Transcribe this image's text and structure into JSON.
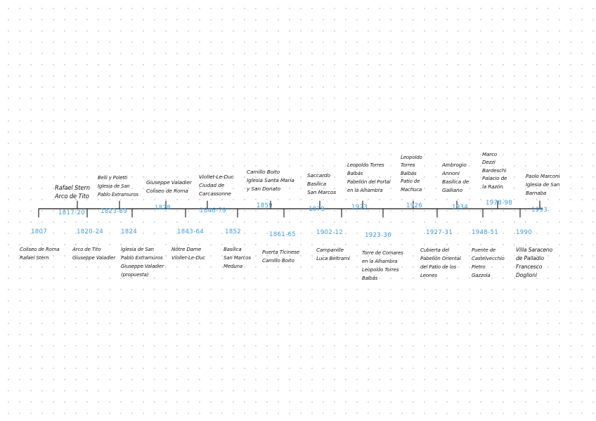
{
  "events_above": [
    {
      "years": "1817-20",
      "name": "Rafael Stern\nArco de Tito"
    },
    {
      "years": "1823-69",
      "name": "Belli y Poletti\nIglesia de San\nPablo Extramuros"
    },
    {
      "years": "1828",
      "name": "Giuseppe Valadier\nColiseo de Roma"
    },
    {
      "years": "1846-79",
      "name": "Viollet-Le-Duc\nCiudad de\nCarcassonne"
    },
    {
      "years": "1859",
      "name": "Camillo Boito\nIglesia Santa María\ny San Donato"
    },
    {
      "years": "1879",
      "name": "Saccardo\nBasílica\nSan Marcos"
    },
    {
      "years": "1923",
      "name": "Leopoldo Torres\nBalbás\nPabellón del Portal\nen la Alhambra"
    },
    {
      "years": "1926",
      "name": "Leopoldo\nTorres\nBalbás\nPatio de\nMachuca"
    },
    {
      "years": "1934",
      "name": "Ambrogio\nAnnoni\nBasílica de\nGalliano"
    },
    {
      "years": "1978-98",
      "name": "Marco\nDezzi\nBardeschi\nPalacio de\nla Razón"
    },
    {
      "years": "1993",
      "name": "Paolo Marconi\nIglesia de San\nBarnaba"
    }
  ],
  "events_below": [
    {
      "years": "1807",
      "name": "Coliseo de Roma\nRafael Stern"
    },
    {
      "years": "1820-24",
      "name": "Arco de Tito\nGiuseppe Valadier"
    },
    {
      "years": "1824",
      "name": "Iglesia de San\nPablo Extramuros\nGiuseppe Valadier\n(propuesta)"
    },
    {
      "years": "1843-64",
      "name": "Nôtre Dame\nViollet-Le-Duc"
    },
    {
      "years": "1852",
      "name": "Basílica\nSan Marcos\nMeduna"
    },
    {
      "years": "1861-65",
      "name": "Puerta Ticinese\nCamillo Boito"
    },
    {
      "years": "1902-12",
      "name": "Campanille\nLuca Beltrami"
    },
    {
      "years": "1923-36",
      "name": "Torre de Comares\nen la Alhambra\nLeopoldo Torres\nBalbás"
    },
    {
      "years": "1927-31",
      "name": "Cubierta del\nPabellón Oriental\ndel Patio de los\nLeones"
    },
    {
      "years": "1948-51",
      "name": "Puente de\nCastelvecchio\nPietro\nGazzola"
    },
    {
      "years": "1990",
      "name": "Villa Saraceno\nde Palladio\nFrancesco\nDoglioni"
    }
  ],
  "colors": {
    "line": "#141414",
    "year": "#3d9be0",
    "text": "#141414",
    "background": "#ffffff",
    "dots": "#cfd3d8"
  }
}
